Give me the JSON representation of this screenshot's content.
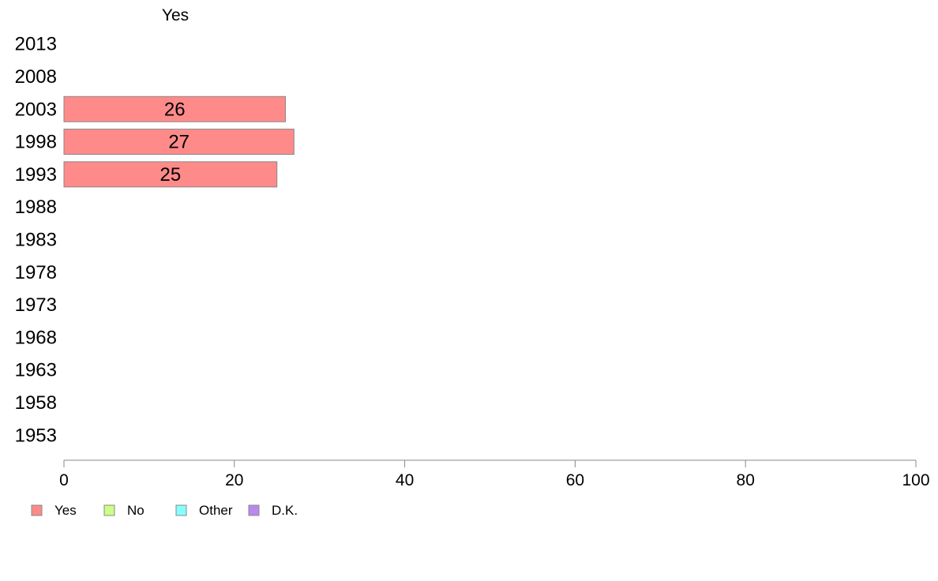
{
  "chart_data": {
    "type": "bar",
    "orientation": "horizontal",
    "series_title": "Yes",
    "categories": [
      "2013",
      "2008",
      "2003",
      "1998",
      "1993",
      "1988",
      "1983",
      "1978",
      "1973",
      "1968",
      "1963",
      "1958",
      "1953"
    ],
    "series": [
      {
        "name": "Yes",
        "color": "#ff8a8a",
        "values": [
          null,
          null,
          26,
          27,
          25,
          null,
          null,
          null,
          null,
          null,
          null,
          null,
          null
        ],
        "labels": [
          "",
          "",
          "26",
          "27",
          "25",
          "",
          "",
          "",
          "",
          "",
          "",
          "",
          ""
        ]
      }
    ],
    "xlim": [
      0,
      100
    ],
    "xticks": [
      "0",
      "20",
      "40",
      "60",
      "80",
      "100"
    ],
    "grid": false,
    "legend": {
      "position": "bottom-left",
      "items": [
        {
          "label": "Yes",
          "color": "#ff8a8a"
        },
        {
          "label": "No",
          "color": "#ccff88"
        },
        {
          "label": "Other",
          "color": "#88ffff"
        },
        {
          "label": "D.K.",
          "color": "#bb88ee"
        }
      ]
    }
  }
}
